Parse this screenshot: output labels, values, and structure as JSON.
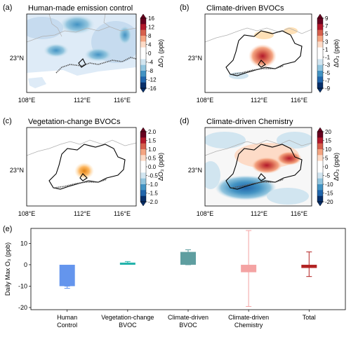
{
  "panels": [
    {
      "letter": "(a)",
      "title": "Human-made emission control",
      "cbar": {
        "ticks": [
          "16",
          "12",
          "8",
          "4",
          "0",
          "-4",
          "-8",
          "-12",
          "-16"
        ],
        "label": "ΔO₃ (ppb)",
        "colors": [
          "#08306b",
          "#2166ac",
          "#4393c3",
          "#92c5de",
          "#d1e5f0",
          "#ffffff",
          "#ffffff",
          "#fddbc7",
          "#f4a582",
          "#d6604d",
          "#b2182b",
          "#67001f"
        ]
      }
    },
    {
      "letter": "(b)",
      "title": "Climate-driven BVOCs",
      "cbar": {
        "ticks": [
          "9",
          "7",
          "5",
          "3",
          "1",
          "-1",
          "-3",
          "-5",
          "-7",
          "-9"
        ],
        "label": "ΔO₃ (ppb)",
        "colors": [
          "#08306b",
          "#2166ac",
          "#4393c3",
          "#92c5de",
          "#d1e5f0",
          "#ffffff",
          "#ffffff",
          "#fddbc7",
          "#f4a582",
          "#d6604d",
          "#b2182b",
          "#67001f"
        ]
      }
    },
    {
      "letter": "(c)",
      "title": "Vegetation-change BVOCs",
      "cbar": {
        "ticks": [
          "2.0",
          "1.5",
          "1.0",
          "0.5",
          "0.0",
          "-0.5",
          "-1.0",
          "-1.5",
          "-2.0"
        ],
        "label": "ΔO₃ (ppb)",
        "colors": [
          "#08306b",
          "#2166ac",
          "#4393c3",
          "#92c5de",
          "#d1e5f0",
          "#ffffff",
          "#ffffff",
          "#fddbc7",
          "#f4a582",
          "#d6604d",
          "#b2182b",
          "#67001f"
        ]
      }
    },
    {
      "letter": "(d)",
      "title": "Climate-driven Chemistry",
      "cbar": {
        "ticks": [
          "20",
          "15",
          "10",
          "5",
          "0",
          "-5",
          "-10",
          "-15",
          "-20"
        ],
        "label": "ΔO₃ (ppb)",
        "colors": [
          "#08306b",
          "#2166ac",
          "#4393c3",
          "#92c5de",
          "#d1e5f0",
          "#ffffff",
          "#ffffff",
          "#fddbc7",
          "#f4a582",
          "#d6604d",
          "#b2182b",
          "#67001f"
        ]
      }
    }
  ],
  "map_axes": {
    "lon_ticks": [
      "108°E",
      "112°E",
      "116°E"
    ],
    "lat_tick": "23°N"
  },
  "bottom_letter": "(e)",
  "chart_data": {
    "type": "bar",
    "categories": [
      "Human\nControl",
      "Vegetation-change\nBVOC",
      "Climate-driven\nBVOC",
      "Climate-driven\nChemistry",
      "Total"
    ],
    "values": [
      -10,
      1,
      6,
      -3.5,
      -1.5
    ],
    "err_low": [
      -11,
      0.5,
      0,
      -19.5,
      -5.5
    ],
    "err_high": [
      -10,
      1.5,
      7,
      16,
      6
    ],
    "colors": [
      "#6495ed",
      "#20b2aa",
      "#5f9ea0",
      "#f4a3a3",
      "#b22222"
    ],
    "ylabel": "Daily Max O₃ (ppb)",
    "ylim": [
      -21,
      17
    ],
    "yticks": [
      -20,
      -10,
      0,
      10
    ],
    "grid": false
  }
}
